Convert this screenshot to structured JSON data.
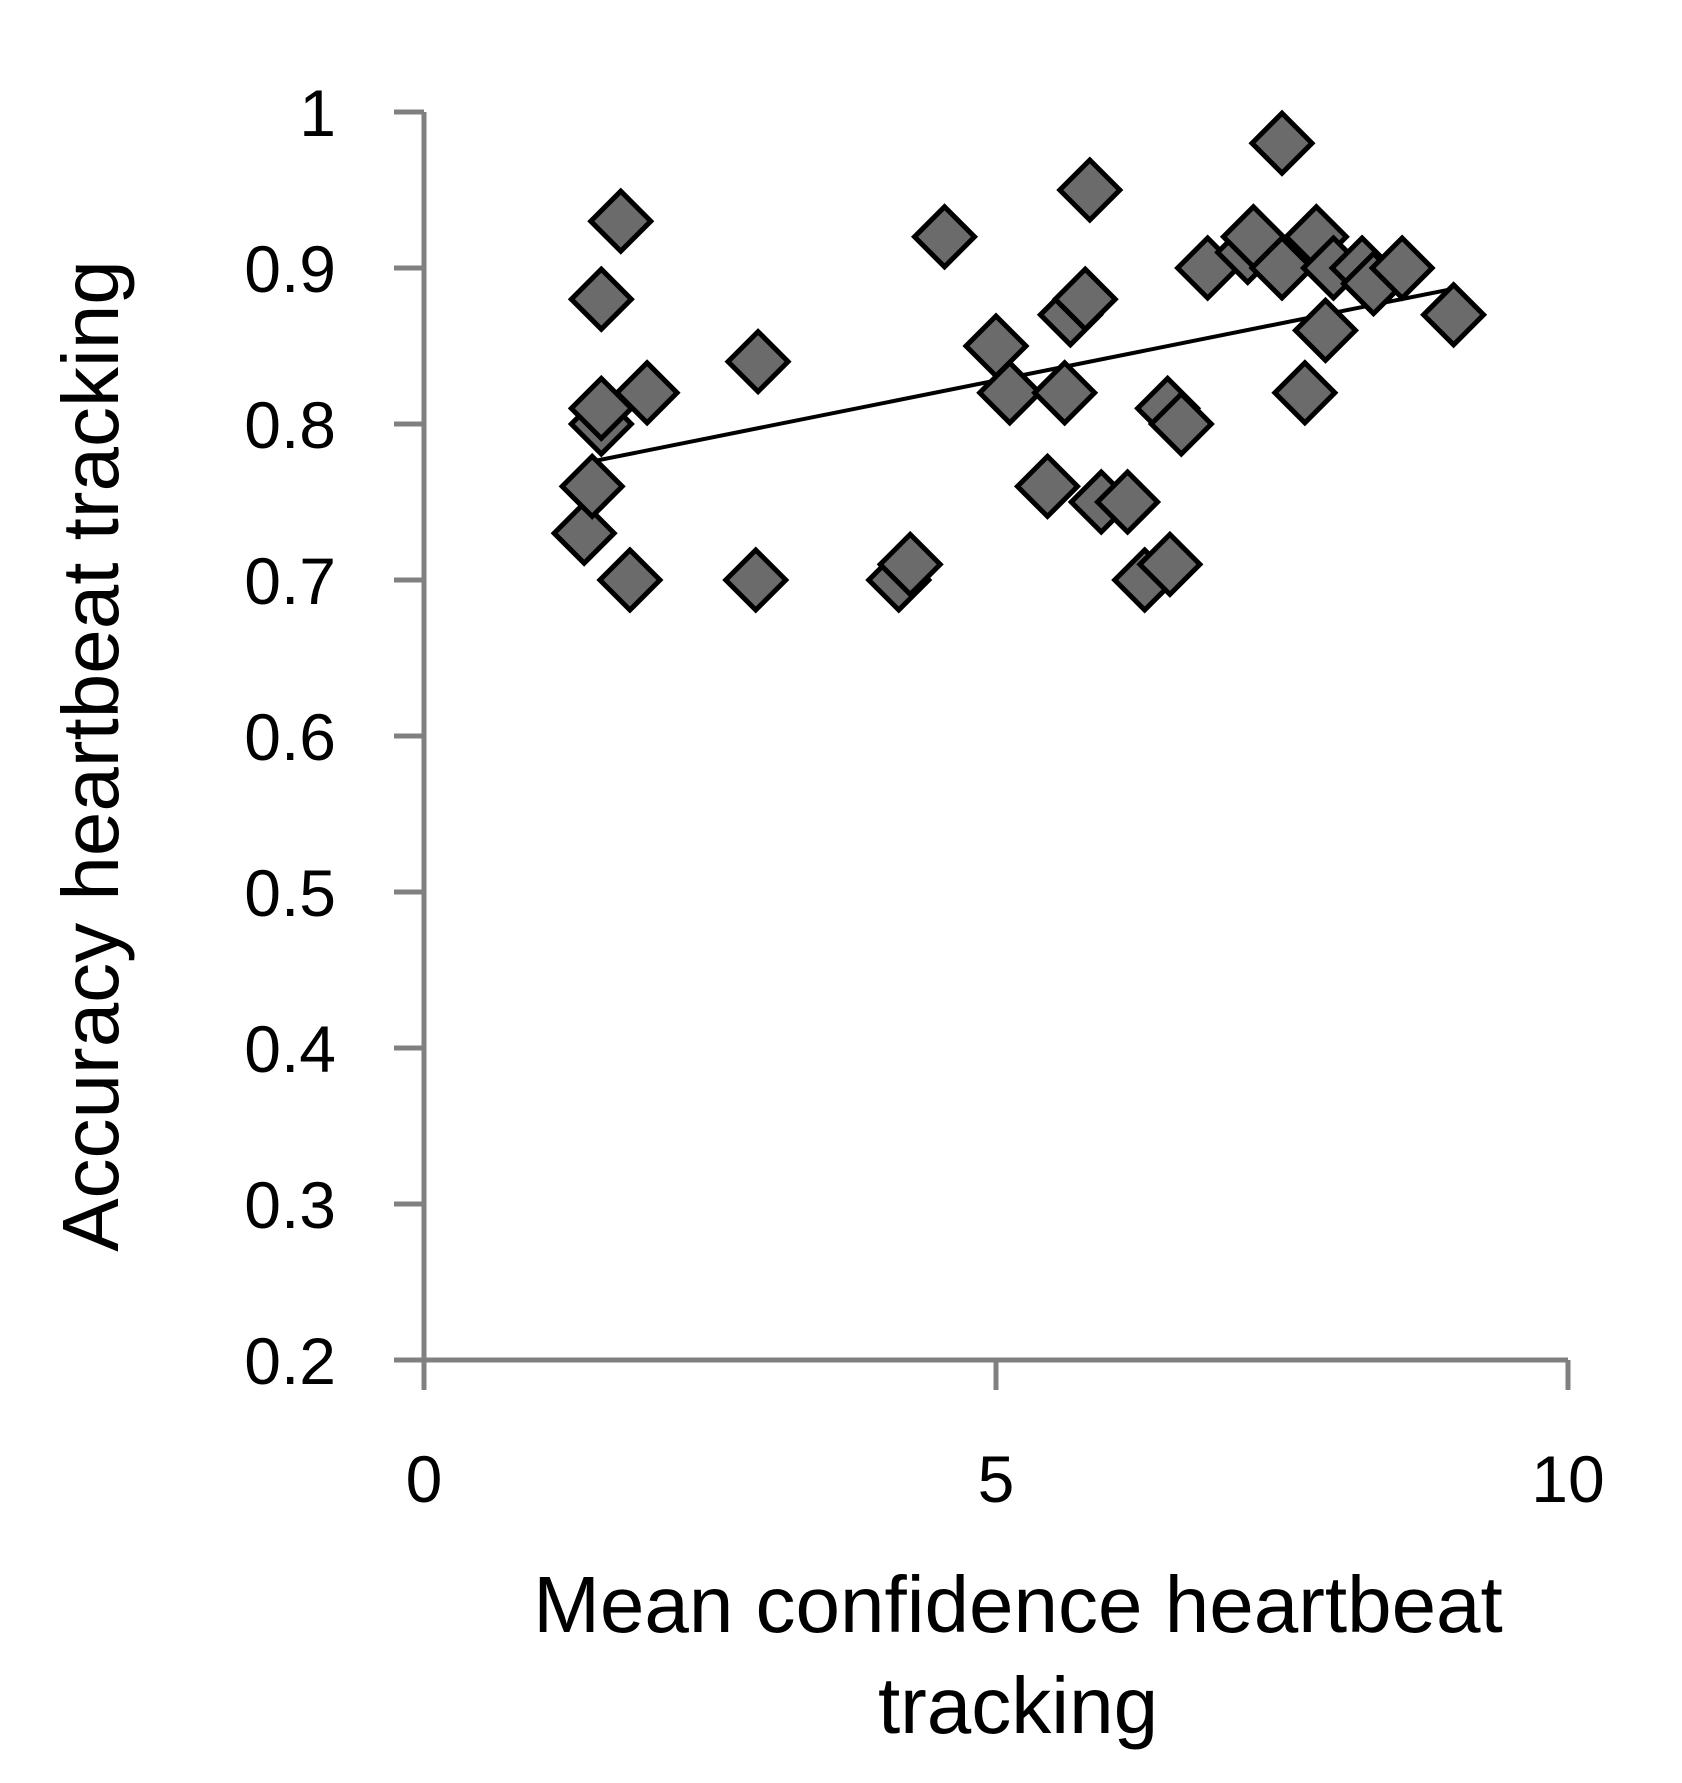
{
  "chart_data": {
    "type": "scatter",
    "title": "",
    "xlabel": "Mean confidence heartbeat tracking",
    "ylabel": "Accuracy heartbeat tracking",
    "xlim": [
      0,
      10
    ],
    "ylim": [
      0.2,
      1.0
    ],
    "x_ticks": [
      "0",
      "5",
      "10"
    ],
    "y_ticks": [
      "0.2",
      "0.3",
      "0.4",
      "0.5",
      "0.6",
      "0.7",
      "0.8",
      "0.9",
      "1"
    ],
    "grid": false,
    "legend": "none",
    "marker": "diamond",
    "colors": {
      "marker_fill": "#6b6b6b",
      "marker_stroke": "#000000",
      "axis": "#808080",
      "trendline": "#000000"
    },
    "trendline": {
      "type": "linear",
      "x": [
        1.47,
        9.02
      ],
      "y": [
        0.776,
        0.887
      ]
    },
    "series": [
      {
        "points": [
          [
            1.4,
            0.73
          ],
          [
            1.47,
            0.76
          ],
          [
            1.55,
            0.8
          ],
          [
            1.55,
            0.81
          ],
          [
            1.55,
            0.88
          ],
          [
            1.8,
            0.7
          ],
          [
            1.72,
            0.93
          ],
          [
            1.95,
            0.82
          ],
          [
            2.9,
            0.7
          ],
          [
            2.92,
            0.84
          ],
          [
            4.15,
            0.7
          ],
          [
            4.25,
            0.71
          ],
          [
            4.55,
            0.92
          ],
          [
            5.0,
            0.85
          ],
          [
            5.12,
            0.82
          ],
          [
            5.45,
            0.76
          ],
          [
            5.6,
            0.82
          ],
          [
            5.65,
            0.87
          ],
          [
            5.78,
            0.88
          ],
          [
            5.82,
            0.95
          ],
          [
            5.92,
            0.75
          ],
          [
            6.15,
            0.75
          ],
          [
            6.3,
            0.7
          ],
          [
            6.52,
            0.71
          ],
          [
            6.5,
            0.81
          ],
          [
            6.62,
            0.8
          ],
          [
            6.85,
            0.9
          ],
          [
            7.2,
            0.91
          ],
          [
            7.25,
            0.92
          ],
          [
            7.5,
            0.9
          ],
          [
            7.5,
            0.98
          ],
          [
            7.7,
            0.82
          ],
          [
            7.8,
            0.92
          ],
          [
            7.88,
            0.86
          ],
          [
            7.95,
            0.9
          ],
          [
            8.2,
            0.9
          ],
          [
            8.3,
            0.89
          ],
          [
            8.55,
            0.9
          ],
          [
            9.0,
            0.87
          ]
        ]
      }
    ]
  }
}
